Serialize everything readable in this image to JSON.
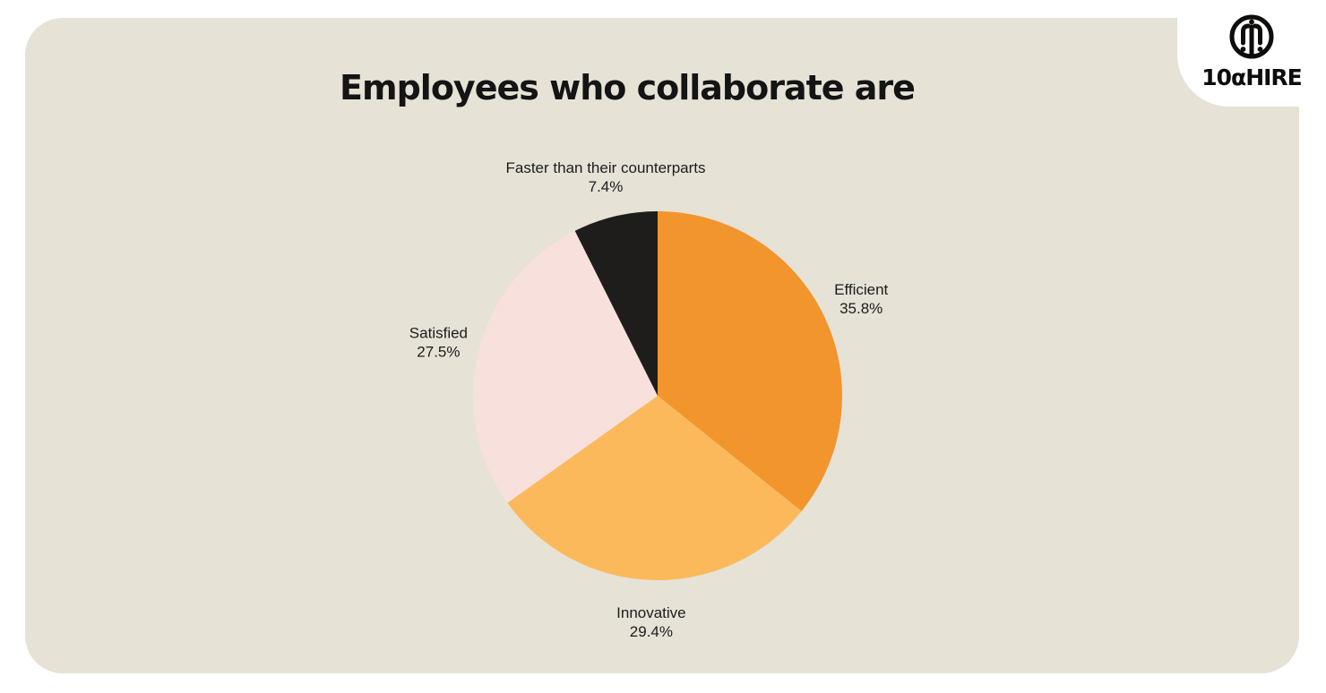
{
  "header": {
    "title": "Employees who collaborate are"
  },
  "logo": {
    "text": "10αHIRE",
    "icon": "10xhire-circle-mark"
  },
  "colors": {
    "page_background": "#ffffff",
    "card_background": "#E6E2D6",
    "title_text": "#141414",
    "label_text": "#1c1c1c",
    "logo_text": "#0e0d0c"
  },
  "chart_data": {
    "type": "pie",
    "title": "Employees who collaborate are",
    "start_angle_deg": 0,
    "direction": "clockwise",
    "legend_position": "none",
    "labels_outside": true,
    "slices": [
      {
        "label": "Efficient",
        "value": 35.8,
        "percent_label": "35.8%",
        "color": "#F2952C"
      },
      {
        "label": "Innovative",
        "value": 29.4,
        "percent_label": "29.4%",
        "color": "#FBB95C"
      },
      {
        "label": "Satisfied",
        "value": 27.5,
        "percent_label": "27.5%",
        "color": "#F8E0DC"
      },
      {
        "label": "Faster than their counterparts",
        "value": 7.4,
        "percent_label": "7.4%",
        "color": "#1F1D1B"
      }
    ]
  }
}
